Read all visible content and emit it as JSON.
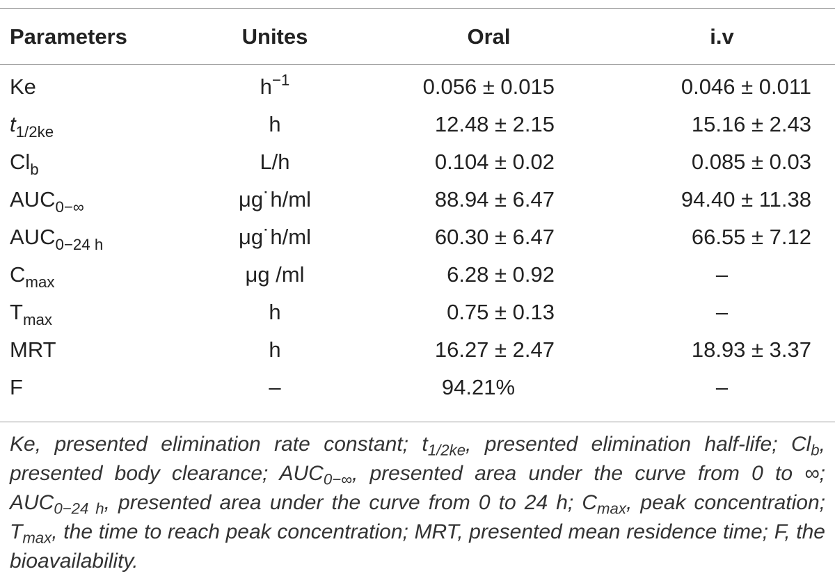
{
  "table": {
    "headers": [
      "Parameters",
      "Unites",
      "Oral",
      "i.v"
    ],
    "rows": [
      {
        "param": "Ke",
        "unit": "h",
        "unit_sup": "−1",
        "oral": "0.056 ± 0.015",
        "iv": "0.046 ± 0.011"
      },
      {
        "param": "t",
        "param_sub": "1/2ke",
        "unit": "h",
        "oral": "12.48 ± 2.15",
        "iv": "15.16 ± 2.43"
      },
      {
        "param": "Cl",
        "param_sub": "b",
        "unit": "L/h",
        "oral": "0.104 ± 0.02",
        "iv": "0.085 ± 0.03"
      },
      {
        "param": "AUC",
        "param_sub": "0−∞",
        "unit": "μg˙h/ml",
        "oral": "88.94 ± 6.47",
        "iv": "94.40 ± 11.38"
      },
      {
        "param": "AUC",
        "param_sub": "0−24 h",
        "unit": "μg˙h/ml",
        "oral": "60.30 ± 6.47",
        "iv": "66.55 ± 7.12"
      },
      {
        "param": "C",
        "param_sub": "max",
        "unit": "μg /ml",
        "oral": "6.28 ± 0.92",
        "iv": "–"
      },
      {
        "param": "T",
        "param_sub": "max",
        "unit": "h",
        "oral": "0.75 ± 0.13",
        "iv": "–"
      },
      {
        "param": "MRT",
        "unit": "h",
        "oral": "16.27 ± 2.47",
        "iv": "18.93 ± 3.37"
      },
      {
        "param": "F",
        "unit": "–",
        "oral": "94.21%",
        "iv": "–"
      }
    ]
  },
  "footnote": {
    "ke": "Ke, presented elimination rate constant;",
    "t_half_base": "t",
    "t_half_sub": "1/2ke",
    "t_half_desc": ", presented elimination half-life;",
    "cl_base": "Cl",
    "cl_sub": "b",
    "cl_desc": ", presented body clearance;",
    "auc_inf_base": "AUC",
    "auc_inf_sub": "0−∞",
    "auc_inf_desc": ", presented area under the curve from 0 to ∞;",
    "auc_24_base": "AUC",
    "auc_24_sub": "0−24 h",
    "auc_24_desc": ", presented area under the curve from 0 to 24 h;",
    "cmax_base": "C",
    "cmax_sub": "max",
    "cmax_desc": ", peak concentration;",
    "tmax_base": "T",
    "tmax_sub": "max",
    "tmax_desc": ", the time to reach peak concentration;",
    "mrt": "MRT, presented mean residence time;",
    "f": "F, the bioavailability."
  }
}
